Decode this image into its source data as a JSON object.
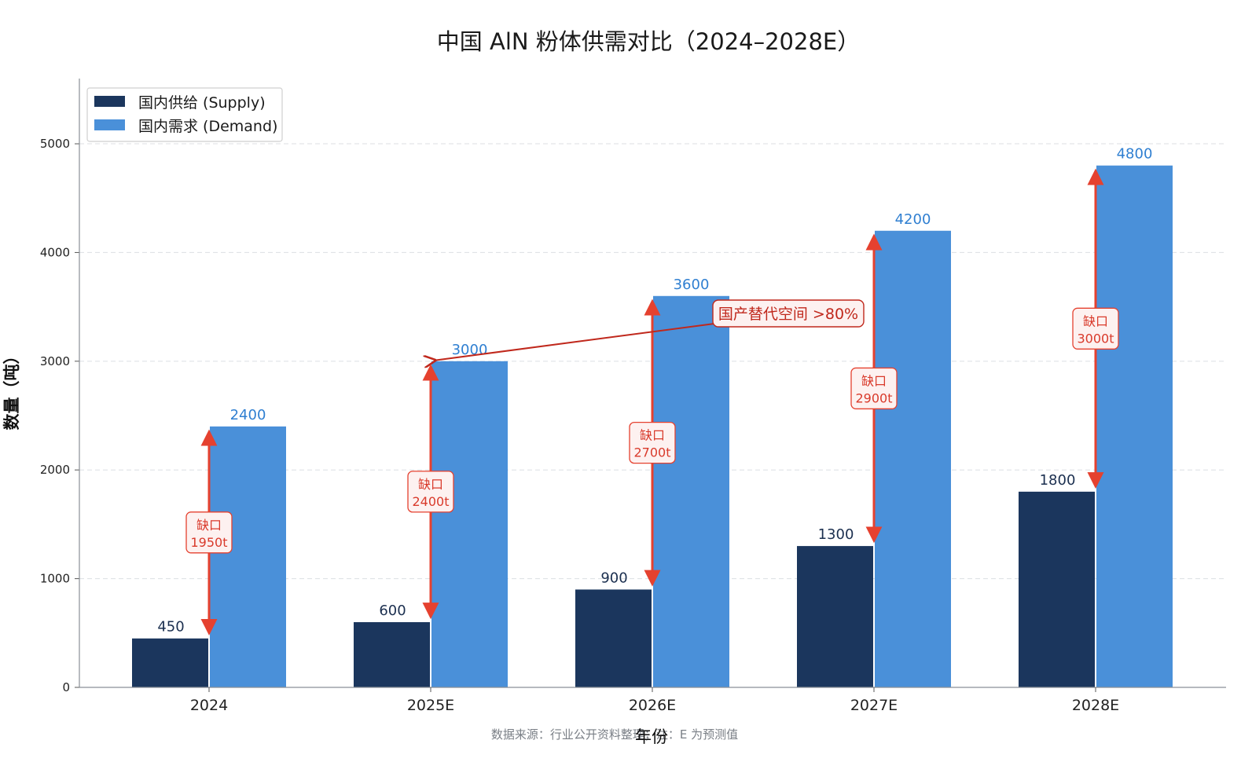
{
  "chart_data": {
    "type": "bar",
    "title": "中国 AlN 粉体供需对比（2024–2028E）",
    "xlabel": "年份",
    "ylabel": "数量（吨）",
    "categories": [
      "2024",
      "2025E",
      "2026E",
      "2027E",
      "2028E"
    ],
    "series": [
      {
        "name": "国内供给 (Supply)",
        "values": [
          450,
          600,
          900,
          1300,
          1800
        ],
        "color": "#1b365d"
      },
      {
        "name": "国内需求 (Demand)",
        "values": [
          2400,
          3000,
          3600,
          4200,
          4800
        ],
        "color": "#4a90d9"
      }
    ],
    "ylim": [
      0,
      5600
    ],
    "yticks": [
      "0",
      "1000",
      "2000",
      "3000",
      "4000",
      "5000"
    ],
    "grid": true,
    "legend_position": "top-left",
    "gap_label": "缺口",
    "gaps": [
      "1950t",
      "2400t",
      "2700t",
      "2900t",
      "3000t"
    ],
    "callout": {
      "text": "国产替代空间 >80%",
      "points_to_category": "2025E",
      "points_to_value": 3000
    },
    "source_note": "数据来源：行业公开资料整理；注：E 为预测值"
  }
}
